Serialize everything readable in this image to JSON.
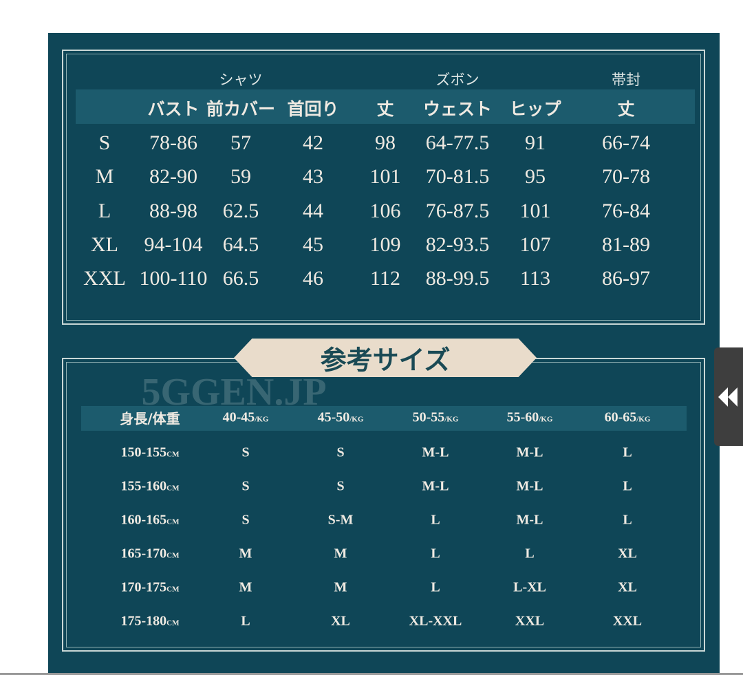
{
  "top_table": {
    "groups": [
      "シャツ",
      "ズボン",
      "帯封"
    ],
    "headers": [
      "バスト",
      "前カバー",
      "首回り",
      "丈",
      "ウェスト",
      "ヒップ",
      "丈"
    ],
    "rows": [
      [
        "S",
        "78-86",
        "57",
        "42",
        "98",
        "64-77.5",
        "91",
        "66-74"
      ],
      [
        "M",
        "82-90",
        "59",
        "43",
        "101",
        "70-81.5",
        "95",
        "70-78"
      ],
      [
        "L",
        "88-98",
        "62.5",
        "44",
        "106",
        "76-87.5",
        "101",
        "76-84"
      ],
      [
        "XL",
        "94-104",
        "64.5",
        "45",
        "109",
        "82-93.5",
        "107",
        "81-89"
      ],
      [
        "XXL",
        "100-110",
        "66.5",
        "46",
        "112",
        "88-99.5",
        "113",
        "86-97"
      ]
    ]
  },
  "watermark": "5GGEN.JP",
  "banner": "参考サイズ",
  "bottom_table": {
    "corner": "身長/体重",
    "weights": [
      {
        "value": "40-45",
        "unit": "/KG"
      },
      {
        "value": "45-50",
        "unit": "/KG"
      },
      {
        "value": "50-55",
        "unit": "/KG"
      },
      {
        "value": "55-60",
        "unit": "/KG"
      },
      {
        "value": "60-65",
        "unit": "/KG"
      }
    ],
    "heights": [
      {
        "value": "150-155",
        "unit": "CM"
      },
      {
        "value": "155-160",
        "unit": "CM"
      },
      {
        "value": "160-165",
        "unit": "CM"
      },
      {
        "value": "165-170",
        "unit": "CM"
      },
      {
        "value": "170-175",
        "unit": "CM"
      },
      {
        "value": "175-180",
        "unit": "CM"
      }
    ],
    "rows": [
      [
        "S",
        "S",
        "M-L",
        "M-L",
        "L"
      ],
      [
        "S",
        "S",
        "M-L",
        "M-L",
        "L"
      ],
      [
        "S",
        "S-M",
        "L",
        "M-L",
        "L"
      ],
      [
        "M",
        "M",
        "L",
        "L",
        "XL"
      ],
      [
        "M",
        "M",
        "L",
        "L-XL",
        "XL"
      ],
      [
        "L",
        "XL",
        "XL-XXL",
        "XXL",
        "XXL"
      ]
    ]
  }
}
